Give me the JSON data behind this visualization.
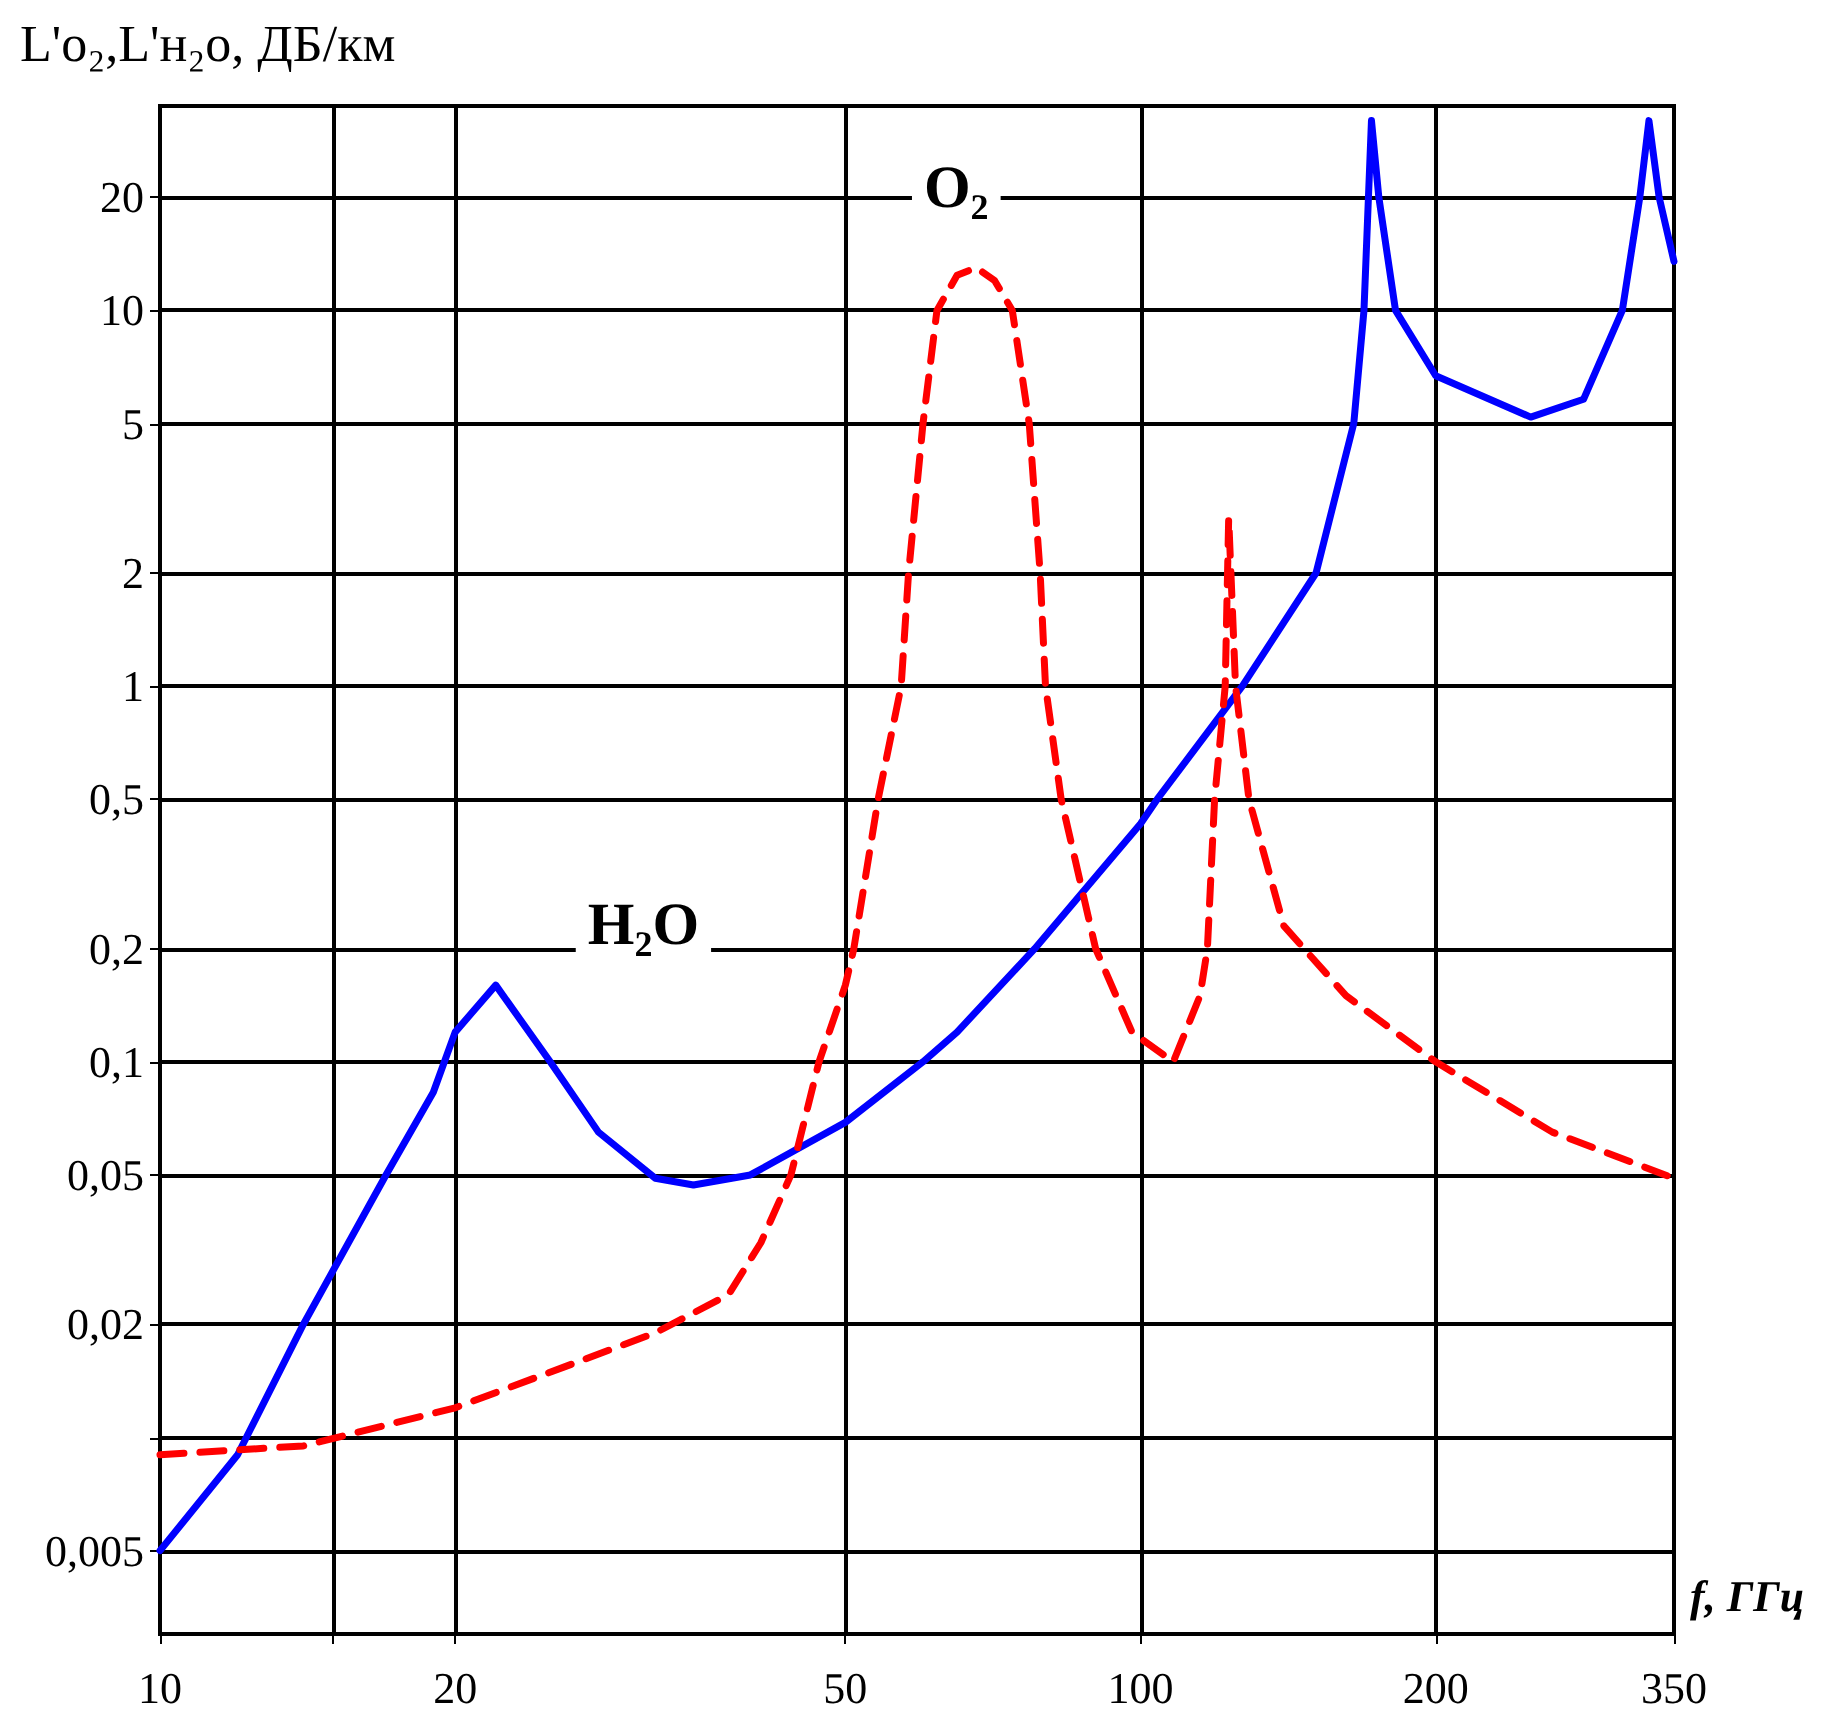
{
  "chart_data": {
    "type": "line",
    "xlabel": "f, ГГц",
    "ylabel": "L'o₂,L'н₂о, ДБ/км",
    "log": "xy",
    "grid": true,
    "legend": false,
    "marker": "none",
    "xlim": [
      10,
      350
    ],
    "xticks": [
      10,
      {
        "value": 15,
        "label": null
      },
      20,
      50,
      100,
      200,
      350
    ],
    "ylim": [
      0.003,
      35
    ],
    "yticks": [
      {
        "value": 0.005,
        "label": "0,005"
      },
      {
        "value": 0.01,
        "label": null
      },
      {
        "value": 0.02,
        "label": "0,02"
      },
      {
        "value": 0.05,
        "label": "0,05"
      },
      {
        "value": 0.1,
        "label": "0,1"
      },
      {
        "value": 0.2,
        "label": "0,2"
      },
      {
        "value": 0.5,
        "label": "0,5"
      },
      1,
      2,
      5,
      10,
      20
    ],
    "series": [
      {
        "name": "H₂O",
        "color": "#0000ff",
        "line_style": "solid",
        "x": [
          10,
          12,
          14,
          17,
          19,
          20,
          22,
          25,
          28,
          32,
          35,
          40,
          50,
          60,
          65,
          78,
          100,
          104,
          127,
          151,
          165,
          169,
          172,
          175,
          182,
          200,
          250,
          283,
          310,
          323,
          330,
          338,
          350
        ],
        "values": [
          0.005,
          0.009,
          0.02,
          0.05,
          0.083,
          0.12,
          0.16,
          0.1,
          0.065,
          0.049,
          0.047,
          0.05,
          0.069,
          0.1,
          0.12,
          0.2,
          0.43,
          0.5,
          1,
          2,
          5,
          10,
          32,
          20,
          10,
          6.7,
          5.2,
          5.8,
          10,
          20,
          32,
          20,
          13.5
        ]
      },
      {
        "name": "O₂",
        "color": "#ff0000",
        "line_style": "dashed",
        "x": [
          10,
          14,
          20,
          32,
          38,
          41,
          44,
          47,
          50,
          51,
          54,
          57,
          58,
          60,
          62,
          65,
          68,
          71,
          74,
          77,
          79,
          80,
          83,
          90,
          98,
          108,
          115,
          117,
          119,
          122,
          123,
          125,
          129,
          140,
          162,
          200,
          263,
          350
        ],
        "values": [
          0.009,
          0.0095,
          0.012,
          0.019,
          0.024,
          0.033,
          0.05,
          0.1,
          0.16,
          0.2,
          0.5,
          1,
          2,
          5,
          10,
          12.4,
          13,
          12,
          10,
          5,
          2,
          1,
          0.5,
          0.2,
          0.12,
          0.1,
          0.15,
          0.2,
          0.5,
          1,
          2.8,
          1,
          0.5,
          0.23,
          0.15,
          0.1,
          0.065,
          0.049
        ]
      }
    ]
  }
}
